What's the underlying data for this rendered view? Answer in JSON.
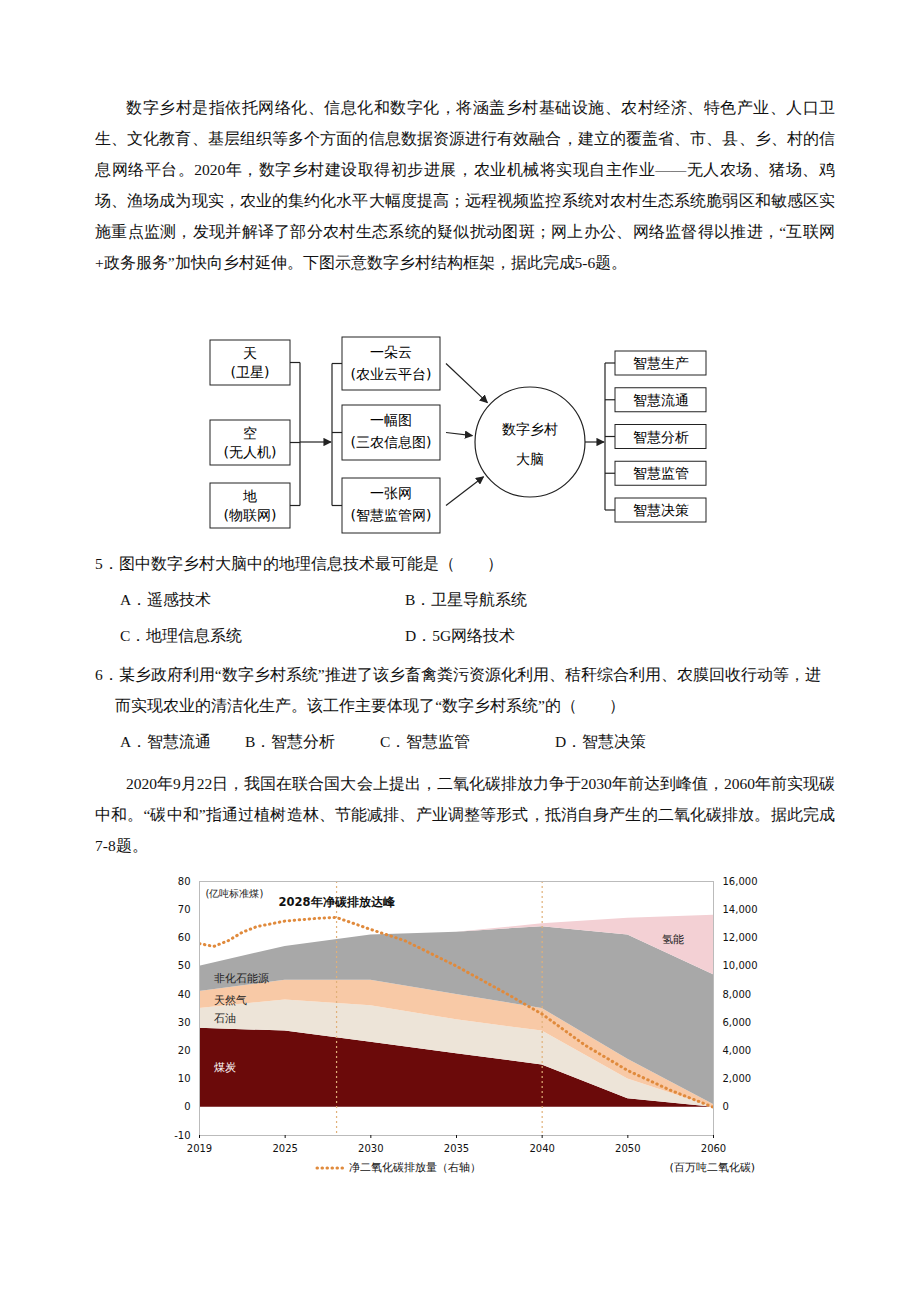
{
  "passage1": "数字乡村是指依托网络化、信息化和数字化，将涵盖乡村基础设施、农村经济、特色产业、人口卫生、文化教育、基层组织等多个方面的信息数据资源进行有效融合，建立的覆盖省、市、县、乡、村的信息网络平台。2020年，数字乡村建设取得初步进展，农业机械将实现自主作业——无人农场、猪场、鸡场、渔场成为现实，农业的集约化水平大幅度提高；远程视频监控系统对农村生态系统脆弱区和敏感区实施重点监测，发现并解译了部分农村生态系统的疑似扰动图斑；网上办公、网络监督得以推进，“互联网+政务服务”加快向乡村延伸。下图示意数字乡村结构框架，据此完成5-6题。",
  "diagram": {
    "sources": [
      {
        "label": "天",
        "sub": "(卫星)"
      },
      {
        "label": "空",
        "sub": "(无人机)"
      },
      {
        "label": "地",
        "sub": "(物联网)"
      }
    ],
    "platforms": [
      {
        "label": "一朵云",
        "sub": "(农业云平台)"
      },
      {
        "label": "一幅图",
        "sub": "(三农信息图)"
      },
      {
        "label": "一张网",
        "sub": "(智慧监管网)"
      }
    ],
    "center": [
      "数字乡村",
      "大脑"
    ],
    "outputs": [
      "智慧生产",
      "智慧流通",
      "智慧分析",
      "智慧监管",
      "智慧决策"
    ]
  },
  "questions": [
    {
      "number": "5．",
      "stem": "图中数字乡村大脑中的地理信息技术最可能是（　　）",
      "options": [
        "A．遥感技术",
        "B．卫星导航系统",
        "C．地理信息系统",
        "D．5G网络技术"
      ]
    },
    {
      "number": "6．",
      "stem": "某乡政府利用“数字乡村系统”推进了该乡畜禽粪污资源化利用、秸秆综合利用、农膜回收行动等，进而实现农业的清洁化生产。该工作主要体现了“数字乡村系统”的（　　）",
      "options": [
        "A．智慧流通",
        "B．智慧分析",
        "C．智慧监管",
        "D．智慧决策"
      ]
    }
  ],
  "passage2": "2020年9月22日，我国在联合国大会上提出，二氧化碳排放力争于2030年前达到峰值，2060年前实现碳中和。“碳中和”指通过植树造林、节能减排、产业调整等形式，抵消自身产生的二氧化碳排放。据此完成7-8题。",
  "chart_data": {
    "type": "area",
    "stacked": true,
    "ylabel": "(亿吨标准煤)",
    "y2label": "(百万吨二氧化碳)",
    "x": [
      2019,
      2025,
      2030,
      2035,
      2040,
      2050,
      2060
    ],
    "xlim": [
      2019,
      2060
    ],
    "xticks": [
      2019,
      2025,
      2030,
      2035,
      2040,
      2050,
      2060
    ],
    "ylim": [
      -10,
      80
    ],
    "yticks": [
      -10,
      0,
      10,
      20,
      30,
      40,
      50,
      60,
      70,
      80
    ],
    "y2lim": [
      -2000,
      16000
    ],
    "y2ticks": [
      0,
      {
        "value": 2000,
        "label": "2,000"
      },
      {
        "value": 4000,
        "label": "4,000"
      },
      {
        "value": 6000,
        "label": "6,000"
      },
      {
        "value": 8000,
        "label": "8,000"
      },
      {
        "value": 10000,
        "label": "10,000"
      },
      {
        "value": 12000,
        "label": "12,000"
      },
      {
        "value": 14000,
        "label": "14,000"
      },
      {
        "value": 16000,
        "label": "16,000"
      }
    ],
    "annotations": [
      {
        "text": "2028年净碳排放达峰",
        "x": 2028
      }
    ],
    "vlines": [
      2028,
      2040
    ],
    "series": [
      {
        "name": "煤炭",
        "color": "#6b0a0a",
        "values": [
          28,
          27,
          23,
          19,
          15,
          3,
          0
        ]
      },
      {
        "name": "石油",
        "color": "#ede4d8",
        "values": [
          7,
          11,
          13,
          12,
          12,
          7,
          0
        ]
      },
      {
        "name": "天然气",
        "color": "#f8c9a6",
        "values": [
          6,
          7,
          9,
          9,
          8,
          7,
          1
        ]
      },
      {
        "name": "非化石能源",
        "color": "#a8a8a8",
        "values": [
          9,
          12,
          16,
          22,
          29,
          44,
          46
        ]
      },
      {
        "name": "氢能",
        "color": "#f3d0d4",
        "values": [
          0,
          0,
          0,
          0,
          1,
          6,
          21
        ]
      },
      {
        "name": "净二氧化碳排放量（右轴）",
        "type": "line",
        "line_style": "dotted",
        "axis": "y2",
        "color": "#e08a3c",
        "x": [
          2019,
          2020,
          2021,
          2022,
          2023,
          2024,
          2025,
          2026,
          2027,
          2028,
          2030,
          2032,
          2035,
          2038,
          2040,
          2045,
          2050,
          2055,
          2060
        ],
        "values": [
          11600,
          11400,
          11800,
          12400,
          12800,
          13000,
          13200,
          13300,
          13400,
          13450,
          12600,
          11800,
          10000,
          8000,
          6600,
          4400,
          2600,
          1200,
          0
        ]
      }
    ]
  }
}
